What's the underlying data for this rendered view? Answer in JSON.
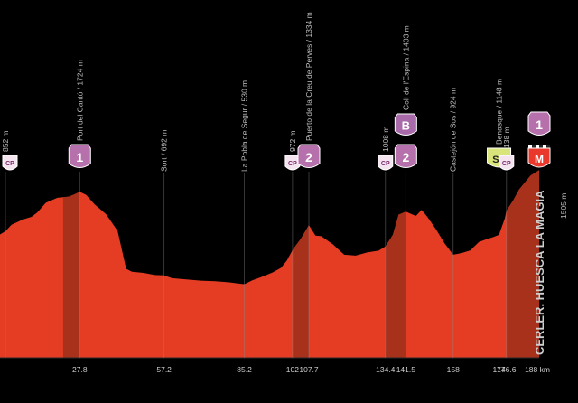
{
  "chart_data": {
    "type": "area",
    "xlabel": "",
    "ylabel": "",
    "x_unit": "km",
    "xlim": [
      0,
      188
    ],
    "colors": {
      "fill": "#e43d24",
      "climb": "#a8311c",
      "sprint": "#d9e47a",
      "mountain": "#c98bc0",
      "finish": "#e8392c"
    },
    "profile": [
      [
        0,
        1050
      ],
      [
        2,
        1070
      ],
      [
        4,
        1105
      ],
      [
        8,
        1135
      ],
      [
        11,
        1150
      ],
      [
        13,
        1175
      ],
      [
        16,
        1230
      ],
      [
        20,
        1258
      ],
      [
        24,
        1265
      ],
      [
        26,
        1278
      ],
      [
        27.8,
        1292
      ],
      [
        30,
        1275
      ],
      [
        33,
        1220
      ],
      [
        37,
        1165
      ],
      [
        41,
        1070
      ],
      [
        44,
        855
      ],
      [
        46,
        838
      ],
      [
        50,
        832
      ],
      [
        54,
        820
      ],
      [
        57.2,
        818
      ],
      [
        60,
        802
      ],
      [
        65,
        795
      ],
      [
        70,
        788
      ],
      [
        75,
        785
      ],
      [
        80,
        778
      ],
      [
        83,
        772
      ],
      [
        85.2,
        768
      ],
      [
        88,
        790
      ],
      [
        91,
        808
      ],
      [
        95,
        834
      ],
      [
        98,
        861
      ],
      [
        100,
        902
      ],
      [
        102,
        962
      ],
      [
        105,
        1028
      ],
      [
        107.7,
        1103
      ],
      [
        110,
        1044
      ],
      [
        112,
        1040
      ],
      [
        116,
        995
      ],
      [
        120,
        935
      ],
      [
        124,
        930
      ],
      [
        128,
        948
      ],
      [
        132,
        958
      ],
      [
        134.4,
        982
      ],
      [
        137,
        1048
      ],
      [
        139,
        1163
      ],
      [
        141.5,
        1180
      ],
      [
        145,
        1155
      ],
      [
        147,
        1190
      ],
      [
        149,
        1150
      ],
      [
        152,
        1080
      ],
      [
        155,
        1000
      ],
      [
        158,
        935
      ],
      [
        161,
        945
      ],
      [
        164,
        960
      ],
      [
        167,
        1008
      ],
      [
        170,
        1025
      ],
      [
        172,
        1035
      ],
      [
        174,
        1048
      ],
      [
        176,
        1140
      ],
      [
        176.6,
        1185
      ],
      [
        179,
        1245
      ],
      [
        181,
        1305
      ],
      [
        183,
        1345
      ],
      [
        185,
        1385
      ],
      [
        188,
        1415
      ]
    ],
    "climb_sections": [
      [
        22,
        27.8
      ],
      [
        102,
        107.7
      ],
      [
        134.4,
        141.5
      ],
      [
        176.6,
        188
      ]
    ],
    "x_ticks": [
      "27.8",
      "57.2",
      "85.2",
      "102",
      "107.7",
      "134.4",
      "141.5",
      "158",
      "174",
      "176.6",
      "188 km"
    ],
    "x_tick_values": [
      27.8,
      57.2,
      85.2,
      102,
      107.7,
      134.4,
      141.5,
      158,
      174,
      176.6,
      188
    ],
    "annotations": [
      {
        "label": "852 m",
        "km": 0
      },
      {
        "label": "Port del Cantó / 1724 m",
        "km": 27.8
      },
      {
        "label": "Sort / 692 m",
        "km": 57.2
      },
      {
        "label": "La Pobla de Segur / 530 m",
        "km": 85.2
      },
      {
        "label": "972 m",
        "km": 102
      },
      {
        "label": "Puerto de la Creu de Perves / 1334 m",
        "km": 107.7
      },
      {
        "label": "1008 m",
        "km": 134.4
      },
      {
        "label": "Coll de l'Espina / 1403 m",
        "km": 141.5
      },
      {
        "label": "Castejón de Sos / 924 m",
        "km": 158
      },
      {
        "label": "Benasque / 1148 m",
        "km": 174
      },
      {
        "label": "1138 m",
        "km": 176.6
      }
    ],
    "markers": [
      {
        "kind": "cp",
        "label": "CP",
        "km": 0
      },
      {
        "kind": "mountain",
        "label": "1",
        "km": 27.8
      },
      {
        "kind": "cp",
        "label": "CP",
        "km": 102
      },
      {
        "kind": "mountain",
        "label": "2",
        "km": 107.7
      },
      {
        "kind": "cp",
        "label": "CP",
        "km": 134.4
      },
      {
        "kind": "mountain",
        "label": "2",
        "km": 141.5
      },
      {
        "kind": "bonus",
        "label": "B",
        "km": 141.5
      },
      {
        "kind": "sprint",
        "label": "SP",
        "km": 174
      },
      {
        "kind": "cp",
        "label": "CP",
        "km": 176.6
      },
      {
        "kind": "finish",
        "label": "M",
        "km": 188
      },
      {
        "kind": "mountain",
        "label": "1",
        "km": 188
      }
    ],
    "finish": {
      "name": "CERLER. HUESCA LA MAGIA",
      "altitude": "1505 m"
    }
  }
}
